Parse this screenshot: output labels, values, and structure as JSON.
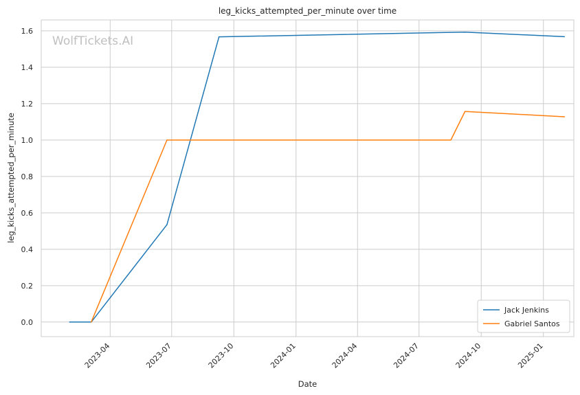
{
  "chart_data": {
    "type": "line",
    "title": "leg_kicks_attempted_per_minute over time",
    "xlabel": "Date",
    "ylabel": "leg_kicks_attempted_per_minute",
    "watermark": "WolfTickets.AI",
    "xlim": [
      "2022-12-20",
      "2025-02-15"
    ],
    "ylim": [
      -0.08,
      1.66
    ],
    "x_ticks": [
      {
        "date": "2023-04-01",
        "label": "2023-04"
      },
      {
        "date": "2023-07-01",
        "label": "2023-07"
      },
      {
        "date": "2023-10-01",
        "label": "2023-10"
      },
      {
        "date": "2024-01-01",
        "label": "2024-01"
      },
      {
        "date": "2024-04-01",
        "label": "2024-04"
      },
      {
        "date": "2024-07-01",
        "label": "2024-07"
      },
      {
        "date": "2024-10-01",
        "label": "2024-10"
      },
      {
        "date": "2025-01-01",
        "label": "2025-01"
      }
    ],
    "y_ticks": [
      0.0,
      0.2,
      0.4,
      0.6,
      0.8,
      1.0,
      1.2,
      1.4,
      1.6
    ],
    "y_tick_labels": [
      "0.0",
      "0.2",
      "0.4",
      "0.6",
      "0.8",
      "1.0",
      "1.2",
      "1.4",
      "1.6"
    ],
    "grid": true,
    "legend_position": "bottom-right",
    "series": [
      {
        "name": "Jack Jenkins",
        "color": "#1f77b4",
        "points": [
          {
            "x": "2023-01-31",
            "y": 0.0
          },
          {
            "x": "2023-03-04",
            "y": 0.0
          },
          {
            "x": "2023-06-24",
            "y": 0.535
          },
          {
            "x": "2023-09-09",
            "y": 1.567
          },
          {
            "x": "2024-09-07",
            "y": 1.593
          },
          {
            "x": "2025-02-01",
            "y": 1.568
          }
        ]
      },
      {
        "name": "Gabriel Santos",
        "color": "#ff7f0e",
        "points": [
          {
            "x": "2023-03-04",
            "y": 0.0
          },
          {
            "x": "2023-06-24",
            "y": 1.0
          },
          {
            "x": "2024-08-17",
            "y": 1.0
          },
          {
            "x": "2024-09-07",
            "y": 1.157
          },
          {
            "x": "2025-02-01",
            "y": 1.128
          }
        ]
      }
    ]
  }
}
